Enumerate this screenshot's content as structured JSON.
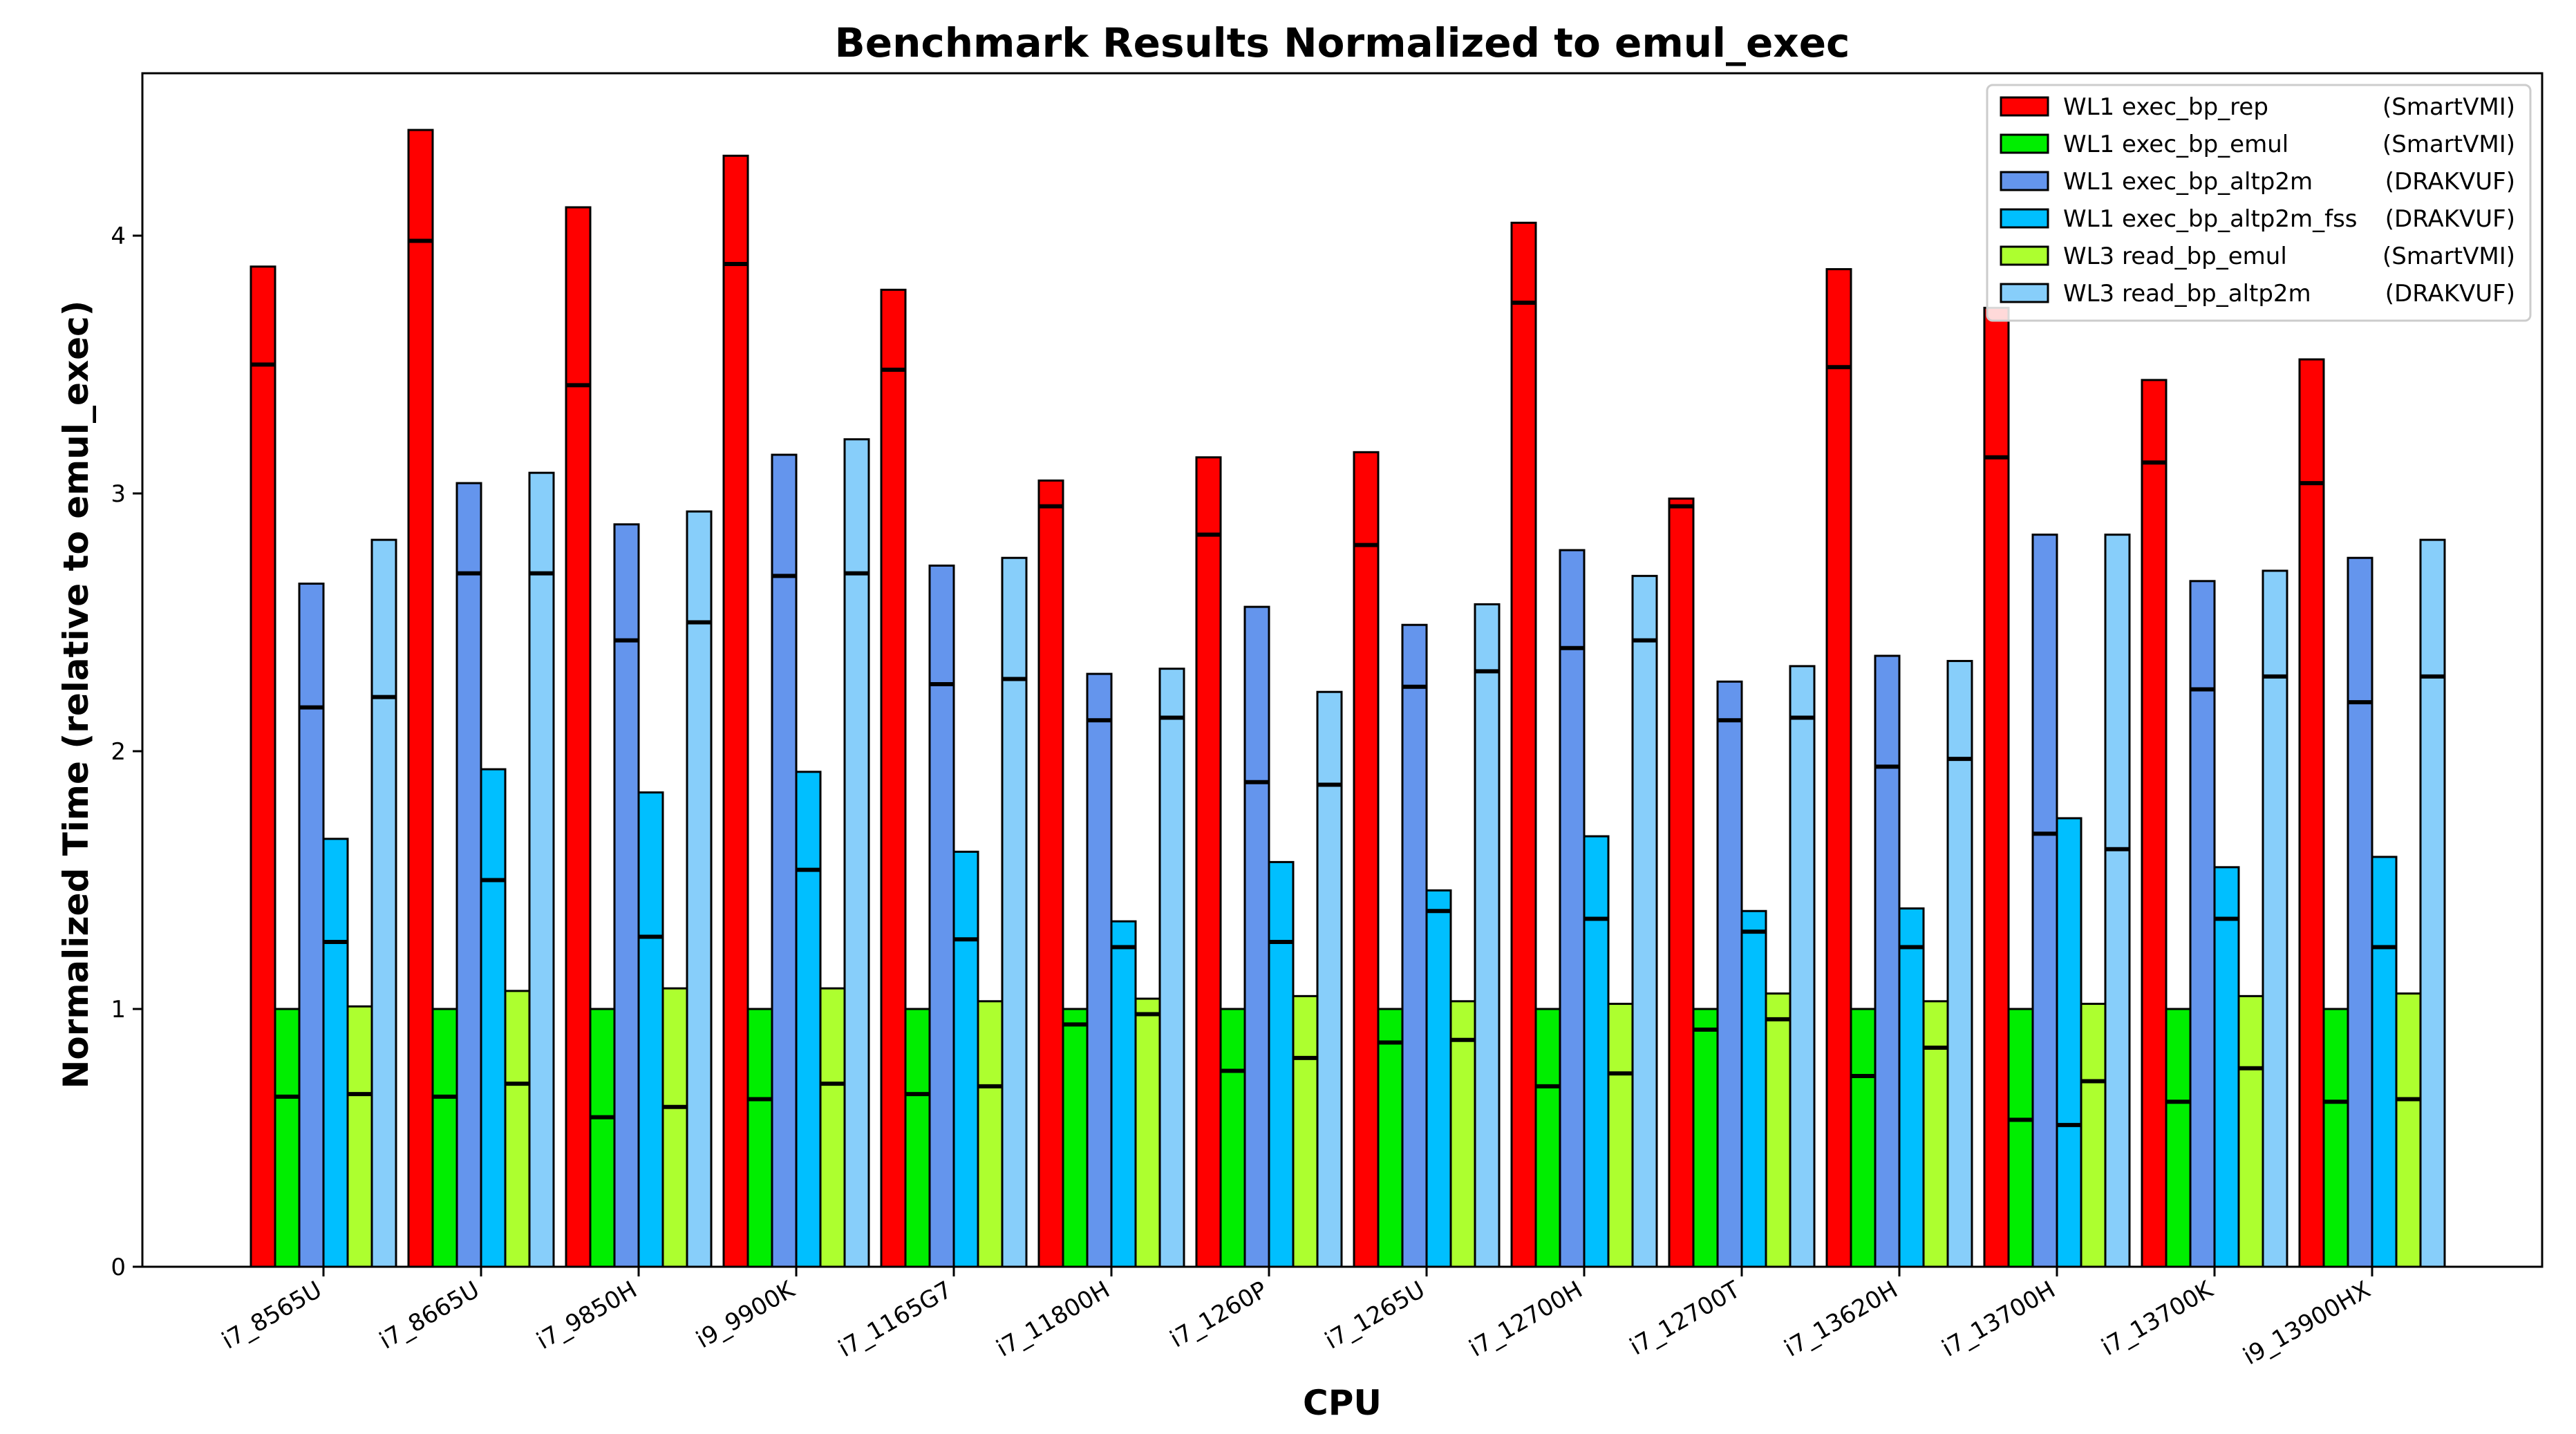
{
  "chart_data": {
    "type": "bar",
    "title": "Benchmark Results Normalized to emul_exec",
    "xlabel": "CPU",
    "ylabel": "Normalized Time (relative to emul_exec)",
    "ylim": [
      0,
      4.63
    ],
    "yticks": [
      "0",
      "1",
      "2",
      "3",
      "4"
    ],
    "grid": false,
    "legend_position": "top-right",
    "categories": [
      "i7_8565U",
      "i7_8665U",
      "i7_9850H",
      "i9_9900K",
      "i7_1165G7",
      "i7_11800H",
      "i7_1260P",
      "i7_1265U",
      "i7_12700H",
      "i7_12700T",
      "i7_13620H",
      "i7_13700H",
      "i7_13700K",
      "i9_13900HX"
    ],
    "series": [
      {
        "name": "WL1 exec_bp_rep",
        "tool": "(SmartVMI)",
        "color": "#ff0000",
        "values": [
          3.88,
          4.41,
          4.11,
          4.31,
          3.79,
          3.05,
          3.14,
          3.16,
          4.05,
          2.98,
          3.87,
          3.72,
          3.44,
          3.52
        ],
        "markers": [
          3.5,
          3.98,
          3.42,
          3.89,
          3.48,
          2.95,
          2.84,
          2.8,
          3.74,
          2.95,
          3.49,
          3.14,
          3.12,
          3.04
        ]
      },
      {
        "name": "WL1 exec_bp_emul",
        "tool": "(SmartVMI)",
        "color": "#00ee00",
        "values": [
          1.0,
          1.0,
          1.0,
          1.0,
          1.0,
          1.0,
          1.0,
          1.0,
          1.0,
          1.0,
          1.0,
          1.0,
          1.0,
          1.0
        ],
        "markers": [
          0.66,
          0.66,
          0.58,
          0.65,
          0.67,
          0.94,
          0.76,
          0.87,
          0.7,
          0.92,
          0.74,
          0.57,
          0.64,
          0.64
        ]
      },
      {
        "name": "WL1 exec_bp_altp2m",
        "tool": "(DRAKVUF)",
        "color": "#6495ed",
        "values": [
          2.65,
          3.04,
          2.88,
          3.15,
          2.72,
          2.3,
          2.56,
          2.49,
          2.78,
          2.27,
          2.37,
          2.84,
          2.66,
          2.75
        ],
        "markers": [
          2.17,
          2.69,
          2.43,
          2.68,
          2.26,
          2.12,
          1.88,
          2.25,
          2.4,
          2.12,
          1.94,
          1.68,
          2.24,
          2.19
        ]
      },
      {
        "name": "WL1 exec_bp_altp2m_fss",
        "tool": "(DRAKVUF)",
        "color": "#00bfff",
        "values": [
          1.66,
          1.93,
          1.84,
          1.92,
          1.61,
          1.34,
          1.57,
          1.46,
          1.67,
          1.38,
          1.39,
          1.74,
          1.55,
          1.59
        ],
        "markers": [
          1.26,
          1.5,
          1.28,
          1.54,
          1.27,
          1.24,
          1.26,
          1.38,
          1.35,
          1.3,
          1.24,
          0.55,
          1.35,
          1.24
        ]
      },
      {
        "name": "WL3 read_bp_emul",
        "tool": "(SmartVMI)",
        "color": "#adff2f",
        "values": [
          1.01,
          1.07,
          1.08,
          1.08,
          1.03,
          1.04,
          1.05,
          1.03,
          1.02,
          1.06,
          1.03,
          1.02,
          1.05,
          1.06
        ],
        "markers": [
          0.67,
          0.71,
          0.62,
          0.71,
          0.7,
          0.98,
          0.81,
          0.88,
          0.75,
          0.96,
          0.85,
          0.72,
          0.77,
          0.65
        ]
      },
      {
        "name": "WL3 read_bp_altp2m",
        "tool": "(DRAKVUF)",
        "color": "#87cefa",
        "values": [
          2.82,
          3.08,
          2.93,
          3.21,
          2.75,
          2.32,
          2.23,
          2.57,
          2.68,
          2.33,
          2.35,
          2.84,
          2.7,
          2.82
        ],
        "markers": [
          2.21,
          2.69,
          2.5,
          2.69,
          2.28,
          2.13,
          1.87,
          2.31,
          2.43,
          2.13,
          1.97,
          1.62,
          2.29,
          2.29
        ]
      }
    ]
  }
}
